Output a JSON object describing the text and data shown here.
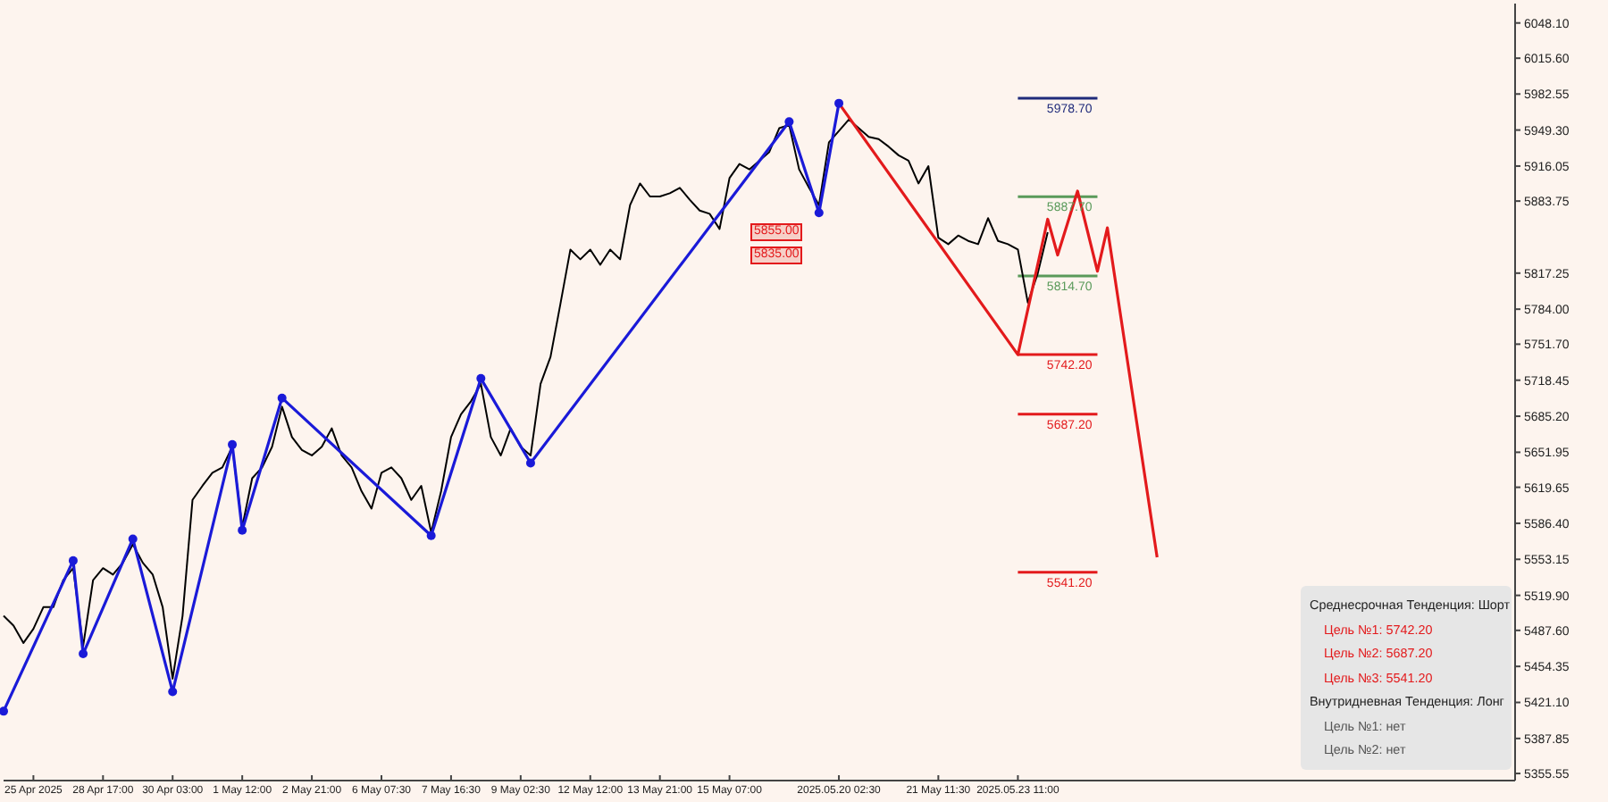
{
  "chart_data": {
    "type": "line",
    "categories": [
      null,
      null,
      null,
      "25 Apr 2025",
      null,
      null,
      null,
      null,
      null,
      null,
      "28 Apr 17:00",
      null,
      null,
      null,
      null,
      null,
      null,
      "30 Apr 03:00",
      null,
      null,
      null,
      null,
      null,
      null,
      "1 May 12:00",
      null,
      null,
      null,
      null,
      null,
      null,
      "2 May 21:00",
      null,
      null,
      null,
      null,
      null,
      null,
      "6 May 07:30",
      null,
      null,
      null,
      null,
      null,
      null,
      "7 May 16:30",
      null,
      null,
      null,
      null,
      null,
      null,
      "9 May 02:30",
      null,
      null,
      null,
      null,
      null,
      null,
      "12 May 12:00",
      null,
      null,
      null,
      null,
      null,
      null,
      "13 May 21:00",
      null,
      null,
      null,
      null,
      null,
      null,
      "15 May 07:00",
      null,
      null,
      null,
      null,
      null,
      null,
      null,
      null,
      null,
      null,
      "2025.05.20 02:30",
      null,
      null,
      null,
      null,
      null,
      null,
      null,
      null,
      null,
      "21 May 11:30",
      null,
      null,
      null,
      null,
      null,
      null,
      null,
      "2025.05.23 11:00",
      null,
      null,
      null,
      null,
      null,
      null,
      null,
      null,
      null,
      null,
      null,
      null,
      null,
      null,
      null,
      null,
      null,
      null,
      null,
      null,
      null,
      null,
      null,
      null,
      null,
      null,
      null,
      null,
      null,
      null,
      null,
      null,
      null,
      null,
      null,
      null,
      null,
      null,
      null,
      null,
      null,
      null,
      null,
      null,
      null,
      null,
      null,
      null,
      null,
      null
    ],
    "series": [
      {
        "color": "#000000",
        "marker": "none",
        "values": [
          5501,
          5492,
          5476,
          5489,
          5509,
          5509,
          5534,
          5545,
          5473,
          5534,
          5545,
          5539,
          5550,
          5567,
          5550,
          5539,
          5509,
          5443,
          5501,
          5608,
          5621,
          5633,
          5638,
          5657,
          5583,
          5628,
          5638,
          5657,
          5694,
          5666,
          5654,
          5649,
          5657,
          5674,
          5649,
          5638,
          5616,
          5600,
          5633,
          5638,
          5628,
          5608,
          5621,
          5578,
          5616,
          5666,
          5687,
          5699,
          5715,
          5666,
          5649,
          5674,
          5657,
          5649,
          5715,
          5740,
          5789,
          5839,
          5830,
          5839,
          5825,
          5839,
          5830,
          5880,
          5900,
          5888,
          5888,
          5891,
          5896,
          5885,
          5875,
          5872,
          5858,
          5905,
          5918,
          5913,
          5921,
          5929,
          5951,
          5954,
          5913,
          5896,
          5880,
          5938,
          null,
          5959,
          5951,
          5943,
          5941,
          5934,
          5926,
          5921,
          5900,
          5916,
          5850,
          5844,
          5852,
          5847,
          5844,
          5868,
          5847,
          5844,
          5839,
          5790,
          5817,
          5855,
          null,
          null,
          null,
          null,
          null,
          null,
          null,
          null,
          null,
          null,
          null,
          null,
          null,
          null,
          null,
          null,
          null,
          null,
          null,
          null,
          null,
          null,
          null,
          null,
          null,
          null,
          null,
          null,
          null,
          null,
          null,
          null,
          null,
          null,
          null,
          null,
          null,
          null,
          null,
          null,
          null,
          null,
          null,
          null,
          null,
          null,
          null
        ]
      },
      {
        "color": "#1a1ad8",
        "marker": "circle",
        "values": [
          5413,
          null,
          null,
          null,
          null,
          null,
          null,
          5552,
          5466,
          null,
          null,
          null,
          null,
          5572,
          null,
          null,
          null,
          5431,
          null,
          null,
          null,
          null,
          null,
          5659,
          5580,
          null,
          null,
          null,
          5702,
          null,
          null,
          null,
          null,
          null,
          null,
          null,
          null,
          null,
          null,
          null,
          null,
          null,
          null,
          5575,
          null,
          null,
          null,
          null,
          5720,
          null,
          null,
          null,
          null,
          5642,
          null,
          null,
          null,
          null,
          null,
          null,
          null,
          null,
          null,
          null,
          null,
          null,
          null,
          null,
          null,
          null,
          null,
          null,
          null,
          null,
          null,
          null,
          null,
          null,
          null,
          5957,
          null,
          null,
          5873,
          null,
          5974,
          null,
          null,
          null,
          null,
          null,
          null,
          null,
          null,
          null,
          null,
          null,
          null,
          null,
          null,
          null,
          null,
          null,
          null,
          null,
          null,
          null,
          null,
          null,
          null,
          null,
          null,
          null,
          null,
          null,
          null,
          null,
          null,
          null,
          null,
          null,
          null,
          null,
          null,
          null,
          null,
          null,
          null,
          null,
          null,
          null,
          null,
          null,
          null,
          null,
          null,
          null,
          null,
          null,
          null,
          null,
          null,
          null,
          null,
          null,
          null,
          null,
          null,
          null,
          null,
          null,
          null,
          null,
          null
        ]
      },
      {
        "color": "#e31a1c",
        "marker": "none",
        "values": [
          null,
          null,
          null,
          null,
          null,
          null,
          null,
          null,
          null,
          null,
          null,
          null,
          null,
          null,
          null,
          null,
          null,
          null,
          null,
          null,
          null,
          null,
          null,
          null,
          null,
          null,
          null,
          null,
          null,
          null,
          null,
          null,
          null,
          null,
          null,
          null,
          null,
          null,
          null,
          null,
          null,
          null,
          null,
          null,
          null,
          null,
          null,
          null,
          null,
          null,
          null,
          null,
          null,
          null,
          null,
          null,
          null,
          null,
          null,
          null,
          null,
          null,
          null,
          null,
          null,
          null,
          null,
          null,
          null,
          null,
          null,
          null,
          null,
          null,
          null,
          null,
          null,
          null,
          null,
          null,
          null,
          null,
          null,
          null,
          5974,
          null,
          null,
          null,
          null,
          null,
          null,
          null,
          null,
          null,
          null,
          null,
          null,
          null,
          null,
          null,
          null,
          null,
          5742,
          null,
          null,
          5867,
          5834,
          null,
          5893,
          null,
          5819,
          5859,
          null,
          null,
          null,
          null,
          5555,
          null,
          null,
          null,
          null,
          null,
          null,
          null,
          null,
          null,
          null,
          null,
          null,
          null,
          null,
          null,
          null,
          null,
          null,
          null,
          null,
          null,
          null,
          null,
          null,
          null,
          null,
          null,
          null,
          null,
          null,
          null,
          null,
          null,
          null,
          null,
          null
        ]
      }
    ],
    "ylim": [
      5349,
      6066
    ],
    "yticks": [
      {
        "value": 6048.1,
        "label": "6048.10"
      },
      {
        "value": 6015.6,
        "label": "6015.60"
      },
      {
        "value": 5982.55,
        "label": "5982.55"
      },
      {
        "value": 5949.3,
        "label": "5949.30"
      },
      {
        "value": 5916.05,
        "label": "5916.05"
      },
      {
        "value": 5883.75,
        "label": "5883.75"
      },
      {
        "value": 5817.25,
        "label": "5817.25"
      },
      {
        "value": 5784,
        "label": "5784.00"
      },
      {
        "value": 5751.7,
        "label": "5751.70"
      },
      {
        "value": 5718.45,
        "label": "5718.45"
      },
      {
        "value": 5685.2,
        "label": "5685.20"
      },
      {
        "value": 5651.95,
        "label": "5651.95"
      },
      {
        "value": 5619.65,
        "label": "5619.65"
      },
      {
        "value": 5586.4,
        "label": "5586.40"
      },
      {
        "value": 5553.15,
        "label": "5553.15"
      },
      {
        "value": 5519.9,
        "label": "5519.90"
      },
      {
        "value": 5487.6,
        "label": "5487.60"
      },
      {
        "value": 5454.35,
        "label": "5454.35"
      },
      {
        "value": 5421.1,
        "label": "5421.10"
      },
      {
        "value": 5387.85,
        "label": "5387.85"
      },
      {
        "value": 5355.55,
        "label": "5355.55"
      }
    ],
    "ref_lines": [
      {
        "axis": "y",
        "value": 5978.7,
        "label": "5978.70",
        "color": "#1f2a7a"
      },
      {
        "axis": "y",
        "value": 5887.7,
        "label": "5887.70",
        "color": "#5a9a5a"
      },
      {
        "axis": "y",
        "value": 5814.7,
        "label": "5814.70",
        "color": "#5a9a5a"
      },
      {
        "axis": "y",
        "value": 5742.2,
        "label": "5742.20",
        "color": "#e31a1c"
      },
      {
        "axis": "y",
        "value": 5687.2,
        "label": "5687.20",
        "color": "#e31a1c"
      },
      {
        "axis": "y",
        "value": 5541.2,
        "label": "5541.20",
        "color": "#e31a1c"
      }
    ],
    "annotations": [
      "5855.00",
      "5835.00",
      "Среднесрочная Тенденция: Шорт",
      "Цель №1: 5742.20",
      "Цель №2: 5687.20",
      "Цель №3: 5541.20",
      "Внутридневная Тенденция: Лонг",
      "Цель №1: нет",
      "Цель №2: нет"
    ]
  }
}
